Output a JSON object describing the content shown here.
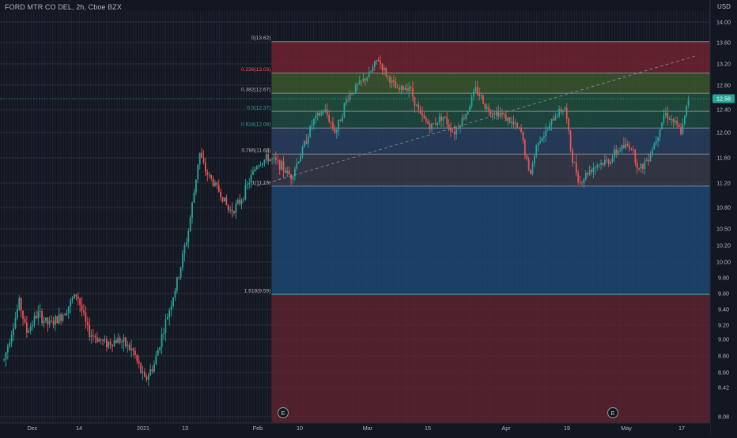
{
  "header": {
    "symbol_title": "FORD MTR CO DEL, 2h, Cboe BZX",
    "currency": "USD"
  },
  "theme": {
    "background": "#131722",
    "up_color": "#26a69a",
    "down_color": "#ef5350",
    "fib_line_color": "#787b86",
    "price_tag_color": "#26a69a",
    "text_color": "#b2b5be"
  },
  "chart_data": {
    "type": "candlestick",
    "title": "",
    "symbol": "FORD MTR CO DEL",
    "timeframe": "2h",
    "exchange": "Cboe BZX",
    "currency": "USD",
    "xlabel": "",
    "ylabel": "",
    "ylim": [
      8.0,
      14.15
    ],
    "grid": true,
    "x_tick_labels": [
      "Dec",
      "14",
      "2021",
      "13",
      "Feb",
      "10",
      "Mar",
      "15",
      "Apr",
      "19",
      "May",
      "17"
    ],
    "y_ticks": [
      8.08,
      8.42,
      8.6,
      8.8,
      9.0,
      9.2,
      9.4,
      9.6,
      9.8,
      10.0,
      10.2,
      10.5,
      10.8,
      11.2,
      11.6,
      12.0,
      12.4,
      12.8,
      13.2,
      13.6,
      14.0
    ],
    "y_tick_labels": [
      "8.08",
      "8.42",
      "8.60",
      "8.80",
      "9.00",
      "9.20",
      "9.40",
      "9.60",
      "9.80",
      "10.00",
      "10.20",
      "10.50",
      "10.80",
      "11.20",
      "11.60",
      "12.00",
      "12.40",
      "12.80",
      "13.20",
      "13.60",
      "14.00"
    ],
    "last_price": 12.58,
    "earnings_markers": [
      {
        "label": "E",
        "x": "Feb"
      },
      {
        "label": "E",
        "x": "Apr 28"
      }
    ],
    "price_path": [
      [
        0,
        8.75
      ],
      [
        0.3,
        9.15
      ],
      [
        0.55,
        9.5
      ],
      [
        0.8,
        9.1
      ],
      [
        1.2,
        9.35
      ],
      [
        1.6,
        9.2
      ],
      [
        2.0,
        9.3
      ],
      [
        2.6,
        9.6
      ],
      [
        3.0,
        9.1
      ],
      [
        3.6,
        8.95
      ],
      [
        4.1,
        9.0
      ],
      [
        4.6,
        8.85
      ],
      [
        5.0,
        8.5
      ],
      [
        5.35,
        8.7
      ],
      [
        5.8,
        9.3
      ],
      [
        6.2,
        9.8
      ],
      [
        6.5,
        10.3
      ],
      [
        6.75,
        11.0
      ],
      [
        6.95,
        11.7
      ],
      [
        7.15,
        11.4
      ],
      [
        7.45,
        11.2
      ],
      [
        7.75,
        11.0
      ],
      [
        8.0,
        10.75
      ],
      [
        8.2,
        10.8
      ],
      [
        8.4,
        10.9
      ],
      [
        8.7,
        11.2
      ],
      [
        9.0,
        11.5
      ],
      [
        9.4,
        11.6
      ],
      [
        9.8,
        11.5
      ],
      [
        10.2,
        11.3
      ],
      [
        10.6,
        11.7
      ],
      [
        11.0,
        12.2
      ],
      [
        11.4,
        12.4
      ],
      [
        11.8,
        12.0
      ],
      [
        12.2,
        12.6
      ],
      [
        12.6,
        12.8
      ],
      [
        13.0,
        13.0
      ],
      [
        13.3,
        13.3
      ],
      [
        13.6,
        13.0
      ],
      [
        14.0,
        12.7
      ],
      [
        14.4,
        12.8
      ],
      [
        14.8,
        12.3
      ],
      [
        15.2,
        12.1
      ],
      [
        15.6,
        12.3
      ],
      [
        16.0,
        12.0
      ],
      [
        16.4,
        12.3
      ],
      [
        16.8,
        12.75
      ],
      [
        17.2,
        12.4
      ],
      [
        17.6,
        12.35
      ],
      [
        18.0,
        12.2
      ],
      [
        18.4,
        12.0
      ],
      [
        18.7,
        11.3
      ],
      [
        19.0,
        11.9
      ],
      [
        19.3,
        12.0
      ],
      [
        19.6,
        12.3
      ],
      [
        19.95,
        12.45
      ],
      [
        20.2,
        11.6
      ],
      [
        20.5,
        11.2
      ],
      [
        20.8,
        11.4
      ],
      [
        21.1,
        11.5
      ],
      [
        21.5,
        11.55
      ],
      [
        21.9,
        11.75
      ],
      [
        22.3,
        11.8
      ],
      [
        22.6,
        11.4
      ],
      [
        22.9,
        11.6
      ],
      [
        23.2,
        11.9
      ],
      [
        23.5,
        12.35
      ],
      [
        23.8,
        12.2
      ],
      [
        24.1,
        12.0
      ],
      [
        24.35,
        12.58
      ]
    ],
    "fib_retracement": {
      "levels": [
        {
          "ratio": "0",
          "price": 13.62,
          "label": "0(13.62)"
        },
        {
          "ratio": "0.236",
          "price": 13.03,
          "label": "0.236(13.03)"
        },
        {
          "ratio": "0.382",
          "price": 12.67,
          "label": "0.382(12.67)"
        },
        {
          "ratio": "0.5",
          "price": 12.37,
          "label": "0.5(12.37)"
        },
        {
          "ratio": "0.618",
          "price": 12.08,
          "label": "0.618(12.08)"
        },
        {
          "ratio": "0.786",
          "price": 11.66,
          "label": "0.786(11.66)"
        },
        {
          "ratio": "1",
          "price": 11.15,
          "label": "1(11.15)"
        },
        {
          "ratio": "1.618",
          "price": 9.59,
          "label": "1.618(9.59)"
        }
      ],
      "bottom_price": 8.0,
      "label_colors": [
        "#b2b5be",
        "#ef5350",
        "#b2b5be",
        "#26a69a",
        "#26a69a",
        "#b2b5be",
        "#b2b5be",
        "#b2b5be"
      ],
      "zone_colors": [
        "#7a2430",
        "#3d5a2c",
        "#21503c",
        "#1f4a3f",
        "#2a4466",
        "#3a3e4e",
        "#1d4877",
        "#6a2430"
      ],
      "zone_opacity": [
        0.75,
        0.8,
        0.85,
        0.85,
        0.75,
        0.75,
        0.8,
        0.7
      ]
    },
    "trend_line": {
      "from": [
        9.0,
        11.15
      ],
      "to": [
        24.6,
        13.35
      ],
      "style": "dashed"
    }
  }
}
